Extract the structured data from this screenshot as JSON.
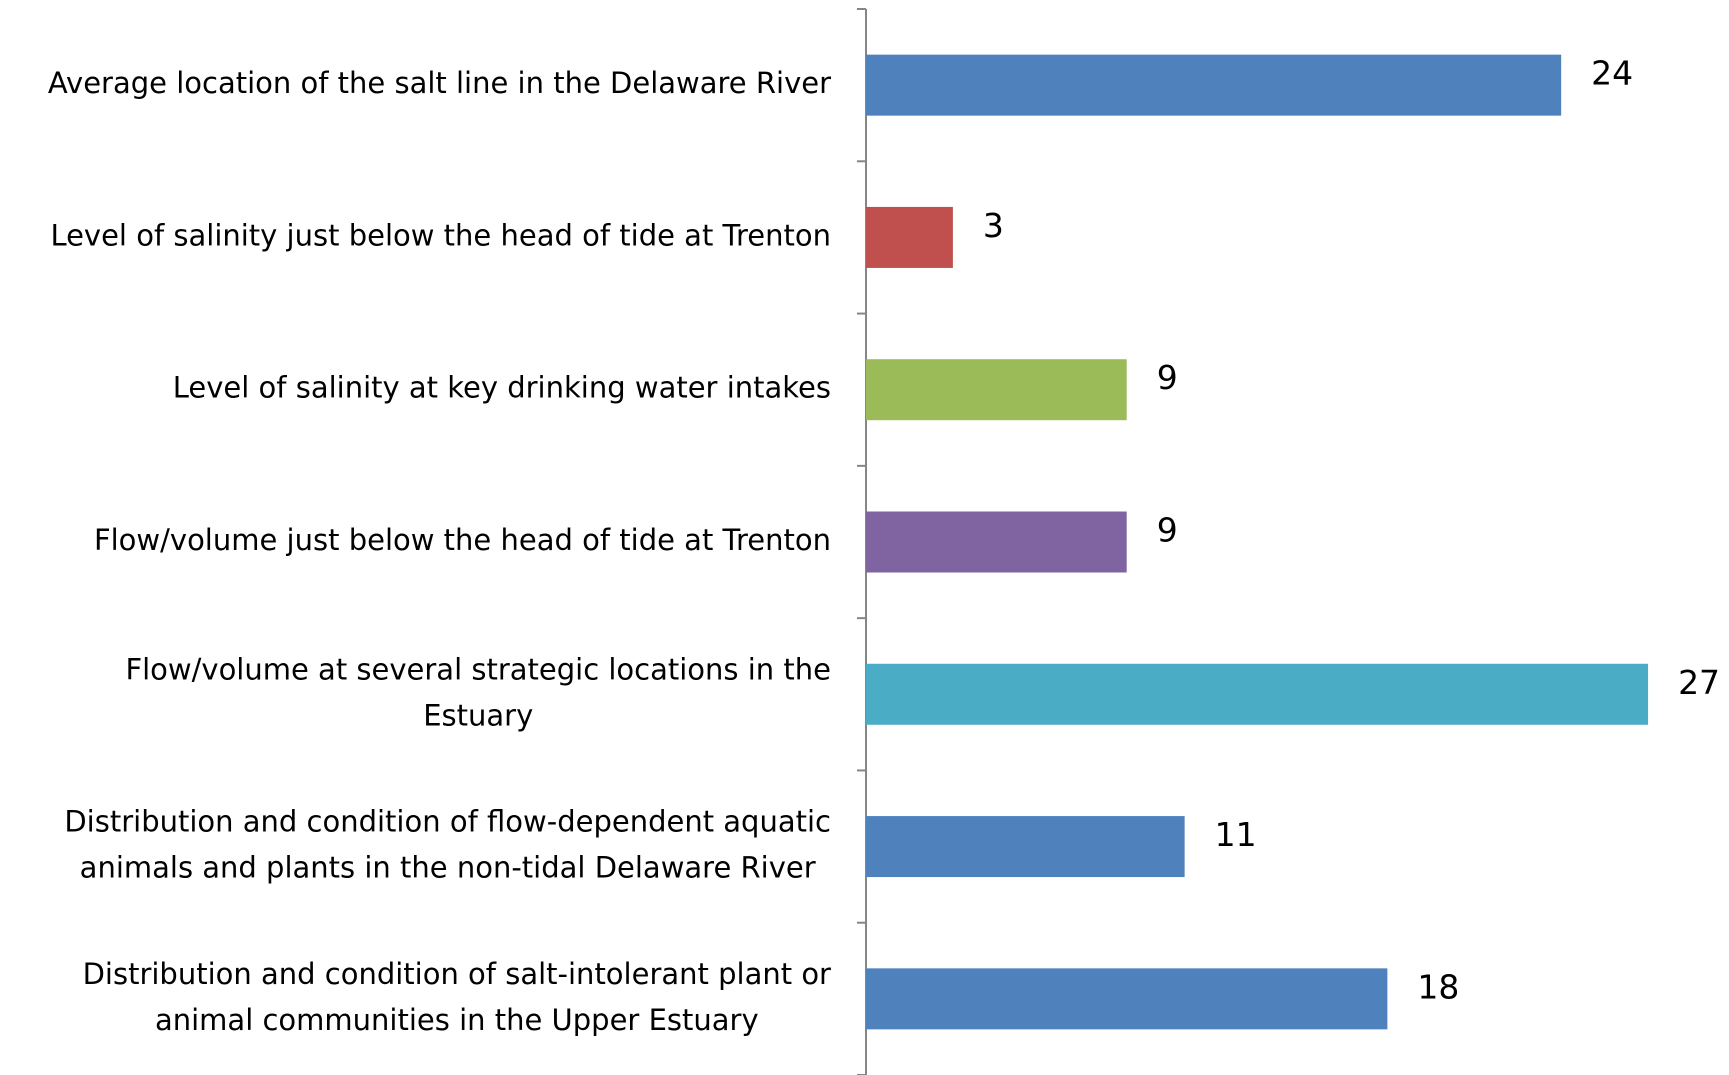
{
  "chart_data": {
    "type": "barh",
    "categories": [
      "Average location of the salt line in the Delaware River",
      "Level of salinity just below the head of tide at Trenton",
      "Level of salinity at key drinking water intakes",
      "Flow/volume just below the head of tide at Trenton",
      "Flow/volume at several strategic locations in the\nEstuary",
      "Distribution and condition of flow-dependent aquatic\nanimals and plants in the non-tidal Delaware River",
      "Distribution and condition of salt-intolerant plant or\nanimal communities in the Upper Estuary"
    ],
    "values": [
      24,
      3,
      9,
      9,
      27,
      11,
      18
    ],
    "colors": [
      "#4f81bd",
      "#c0504d",
      "#9bbb59",
      "#8064a2",
      "#4bacc6",
      "#4f81bd",
      "#4f81bd"
    ],
    "xlim": [
      0,
      29
    ]
  }
}
